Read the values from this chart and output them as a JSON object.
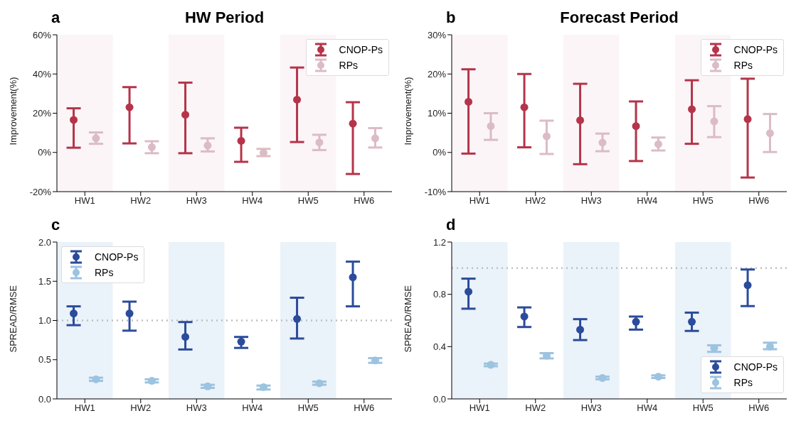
{
  "chart_data": [
    {
      "type": "scatter",
      "title": "HW Period",
      "annotations": [
        "a"
      ],
      "ylabel": "Improvement(%)",
      "categories": [
        "HW1",
        "HW2",
        "HW3",
        "HW4",
        "HW5",
        "HW6"
      ],
      "marker": "circle",
      "legend": "top right",
      "ylim": [
        -20,
        60
      ],
      "yticks": [
        {
          "value": -20,
          "label": "-20%"
        },
        {
          "value": 0,
          "label": "0%"
        },
        {
          "value": 20,
          "label": "20%"
        },
        {
          "value": 40,
          "label": "40%"
        },
        {
          "value": 60,
          "label": "60%"
        }
      ],
      "bands": [
        {
          "axis": "x",
          "from": "HW1",
          "to": "HW1",
          "color": "#fbf5f7"
        },
        {
          "axis": "x",
          "from": "HW3",
          "to": "HW3",
          "color": "#fbf5f7"
        },
        {
          "axis": "x",
          "from": "HW5",
          "to": "HW5",
          "color": "#fbf5f7"
        }
      ],
      "series": [
        {
          "name": "CNOP-Ps",
          "color": "#b5344a",
          "values": [
            16.6,
            23,
            19.2,
            5.9,
            26.9,
            14.7
          ],
          "errors": [
            [
              2.4,
              22.5
            ],
            [
              4.6,
              33.3
            ],
            [
              -0.4,
              35.6
            ],
            [
              -4.8,
              12.6
            ],
            [
              5.3,
              43.3
            ],
            [
              -11,
              25.6
            ]
          ]
        },
        {
          "name": "RPs",
          "color": "#dbbcc5",
          "values": [
            7.2,
            2.7,
            3.5,
            -0.2,
            5.1,
            7.2
          ],
          "errors": [
            [
              4.4,
              10.2
            ],
            [
              -0.4,
              5.7
            ],
            [
              0.5,
              7.2
            ],
            [
              -1.9,
              1.8
            ],
            [
              1.2,
              9
            ],
            [
              2.5,
              12.4
            ]
          ]
        }
      ]
    },
    {
      "type": "scatter",
      "title": "Forecast Period",
      "annotations": [
        "b"
      ],
      "ylabel": "Improvement(%)",
      "categories": [
        "HW1",
        "HW2",
        "HW3",
        "HW4",
        "HW5",
        "HW6"
      ],
      "marker": "circle",
      "legend": "top right",
      "ylim": [
        -10,
        30
      ],
      "yticks": [
        {
          "value": -10,
          "label": "-10%"
        },
        {
          "value": 0,
          "label": "0%"
        },
        {
          "value": 10,
          "label": "10%"
        },
        {
          "value": 20,
          "label": "20%"
        },
        {
          "value": 30,
          "label": "30%"
        }
      ],
      "bands": [
        {
          "axis": "x",
          "from": "HW1",
          "to": "HW1",
          "color": "#fbf5f7"
        },
        {
          "axis": "x",
          "from": "HW3",
          "to": "HW3",
          "color": "#fbf5f7"
        },
        {
          "axis": "x",
          "from": "HW5",
          "to": "HW5",
          "color": "#fbf5f7"
        }
      ],
      "series": [
        {
          "name": "CNOP-Ps",
          "color": "#b5344a",
          "values": [
            12.9,
            11.5,
            8.2,
            6.7,
            11,
            8.5
          ],
          "errors": [
            [
              -0.3,
              21.2
            ],
            [
              1.3,
              20
            ],
            [
              -3,
              17.5
            ],
            [
              -2.2,
              13
            ],
            [
              2.2,
              18.4
            ],
            [
              -6.4,
              18.8
            ]
          ]
        },
        {
          "name": "RPs",
          "color": "#dbbcc5",
          "values": [
            6.7,
            4.1,
            2.5,
            2.1,
            7.9,
            4.9
          ],
          "errors": [
            [
              3.2,
              10
            ],
            [
              -0.4,
              8.1
            ],
            [
              0.3,
              4.8
            ],
            [
              0.5,
              3.8
            ],
            [
              3.9,
              11.8
            ],
            [
              0.1,
              9.8
            ]
          ]
        }
      ]
    },
    {
      "type": "scatter",
      "annotations": [
        "c"
      ],
      "ylabel": "SPREAD/RMSE",
      "categories": [
        "HW1",
        "HW2",
        "HW3",
        "HW4",
        "HW5",
        "HW6"
      ],
      "marker": "circle",
      "legend": "top left",
      "ylim": [
        0,
        2
      ],
      "yticks": [
        {
          "value": 0,
          "label": "0.0"
        },
        {
          "value": 0.5,
          "label": "0.5"
        },
        {
          "value": 1,
          "label": "1.0"
        },
        {
          "value": 1.5,
          "label": "1.5"
        },
        {
          "value": 2,
          "label": "2.0"
        }
      ],
      "bands": [
        {
          "axis": "x",
          "from": "HW1",
          "to": "HW1",
          "color": "#eaf2fa"
        },
        {
          "axis": "x",
          "from": "HW3",
          "to": "HW3",
          "color": "#eaf2fa"
        },
        {
          "axis": "x",
          "from": "HW5",
          "to": "HW5",
          "color": "#eaf2fa"
        }
      ],
      "ref_lines": [
        {
          "axis": "y",
          "value": 1,
          "color": "#c0c0c0",
          "line_style": "dotted"
        }
      ],
      "series": [
        {
          "name": "CNOP-Ps",
          "color": "#2b4b9b",
          "values": [
            1.09,
            1.09,
            0.79,
            0.73,
            1.02,
            1.55
          ],
          "errors": [
            [
              0.94,
              1.18
            ],
            [
              0.87,
              1.24
            ],
            [
              0.63,
              0.98
            ],
            [
              0.65,
              0.79
            ],
            [
              0.77,
              1.29
            ],
            [
              1.18,
              1.75
            ]
          ]
        },
        {
          "name": "RPs",
          "color": "#9cc3e0",
          "values": [
            0.25,
            0.23,
            0.16,
            0.15,
            0.2,
            0.49
          ],
          "errors": [
            [
              0.23,
              0.27
            ],
            [
              0.21,
              0.25
            ],
            [
              0.14,
              0.18
            ],
            [
              0.12,
              0.17
            ],
            [
              0.18,
              0.22
            ],
            [
              0.46,
              0.52
            ]
          ]
        }
      ]
    },
    {
      "type": "scatter",
      "annotations": [
        "d"
      ],
      "ylabel": "SPREAD/RMSE",
      "categories": [
        "HW1",
        "HW2",
        "HW3",
        "HW4",
        "HW5",
        "HW6"
      ],
      "marker": "circle",
      "legend": "bottom right",
      "ylim": [
        0,
        1.2
      ],
      "yticks": [
        {
          "value": 0,
          "label": "0.0"
        },
        {
          "value": 0.4,
          "label": "0.4"
        },
        {
          "value": 0.8,
          "label": "0.8"
        },
        {
          "value": 1.2,
          "label": "1.2"
        }
      ],
      "bands": [
        {
          "axis": "x",
          "from": "HW1",
          "to": "HW1",
          "color": "#eaf2fa"
        },
        {
          "axis": "x",
          "from": "HW3",
          "to": "HW3",
          "color": "#eaf2fa"
        },
        {
          "axis": "x",
          "from": "HW5",
          "to": "HW5",
          "color": "#eaf2fa"
        }
      ],
      "ref_lines": [
        {
          "axis": "y",
          "value": 1,
          "color": "#c0c0c0",
          "line_style": "dotted"
        }
      ],
      "series": [
        {
          "name": "CNOP-Ps",
          "color": "#2b4b9b",
          "values": [
            0.82,
            0.63,
            0.53,
            0.59,
            0.59,
            0.87
          ],
          "errors": [
            [
              0.69,
              0.92
            ],
            [
              0.55,
              0.7
            ],
            [
              0.45,
              0.61
            ],
            [
              0.53,
              0.63
            ],
            [
              0.52,
              0.66
            ],
            [
              0.71,
              0.99
            ]
          ]
        },
        {
          "name": "RPs",
          "color": "#9cc3e0",
          "values": [
            0.26,
            0.33,
            0.16,
            0.17,
            0.39,
            0.4
          ],
          "errors": [
            [
              0.25,
              0.27
            ],
            [
              0.31,
              0.35
            ],
            [
              0.15,
              0.17
            ],
            [
              0.16,
              0.18
            ],
            [
              0.36,
              0.41
            ],
            [
              0.38,
              0.43
            ]
          ]
        }
      ]
    }
  ]
}
